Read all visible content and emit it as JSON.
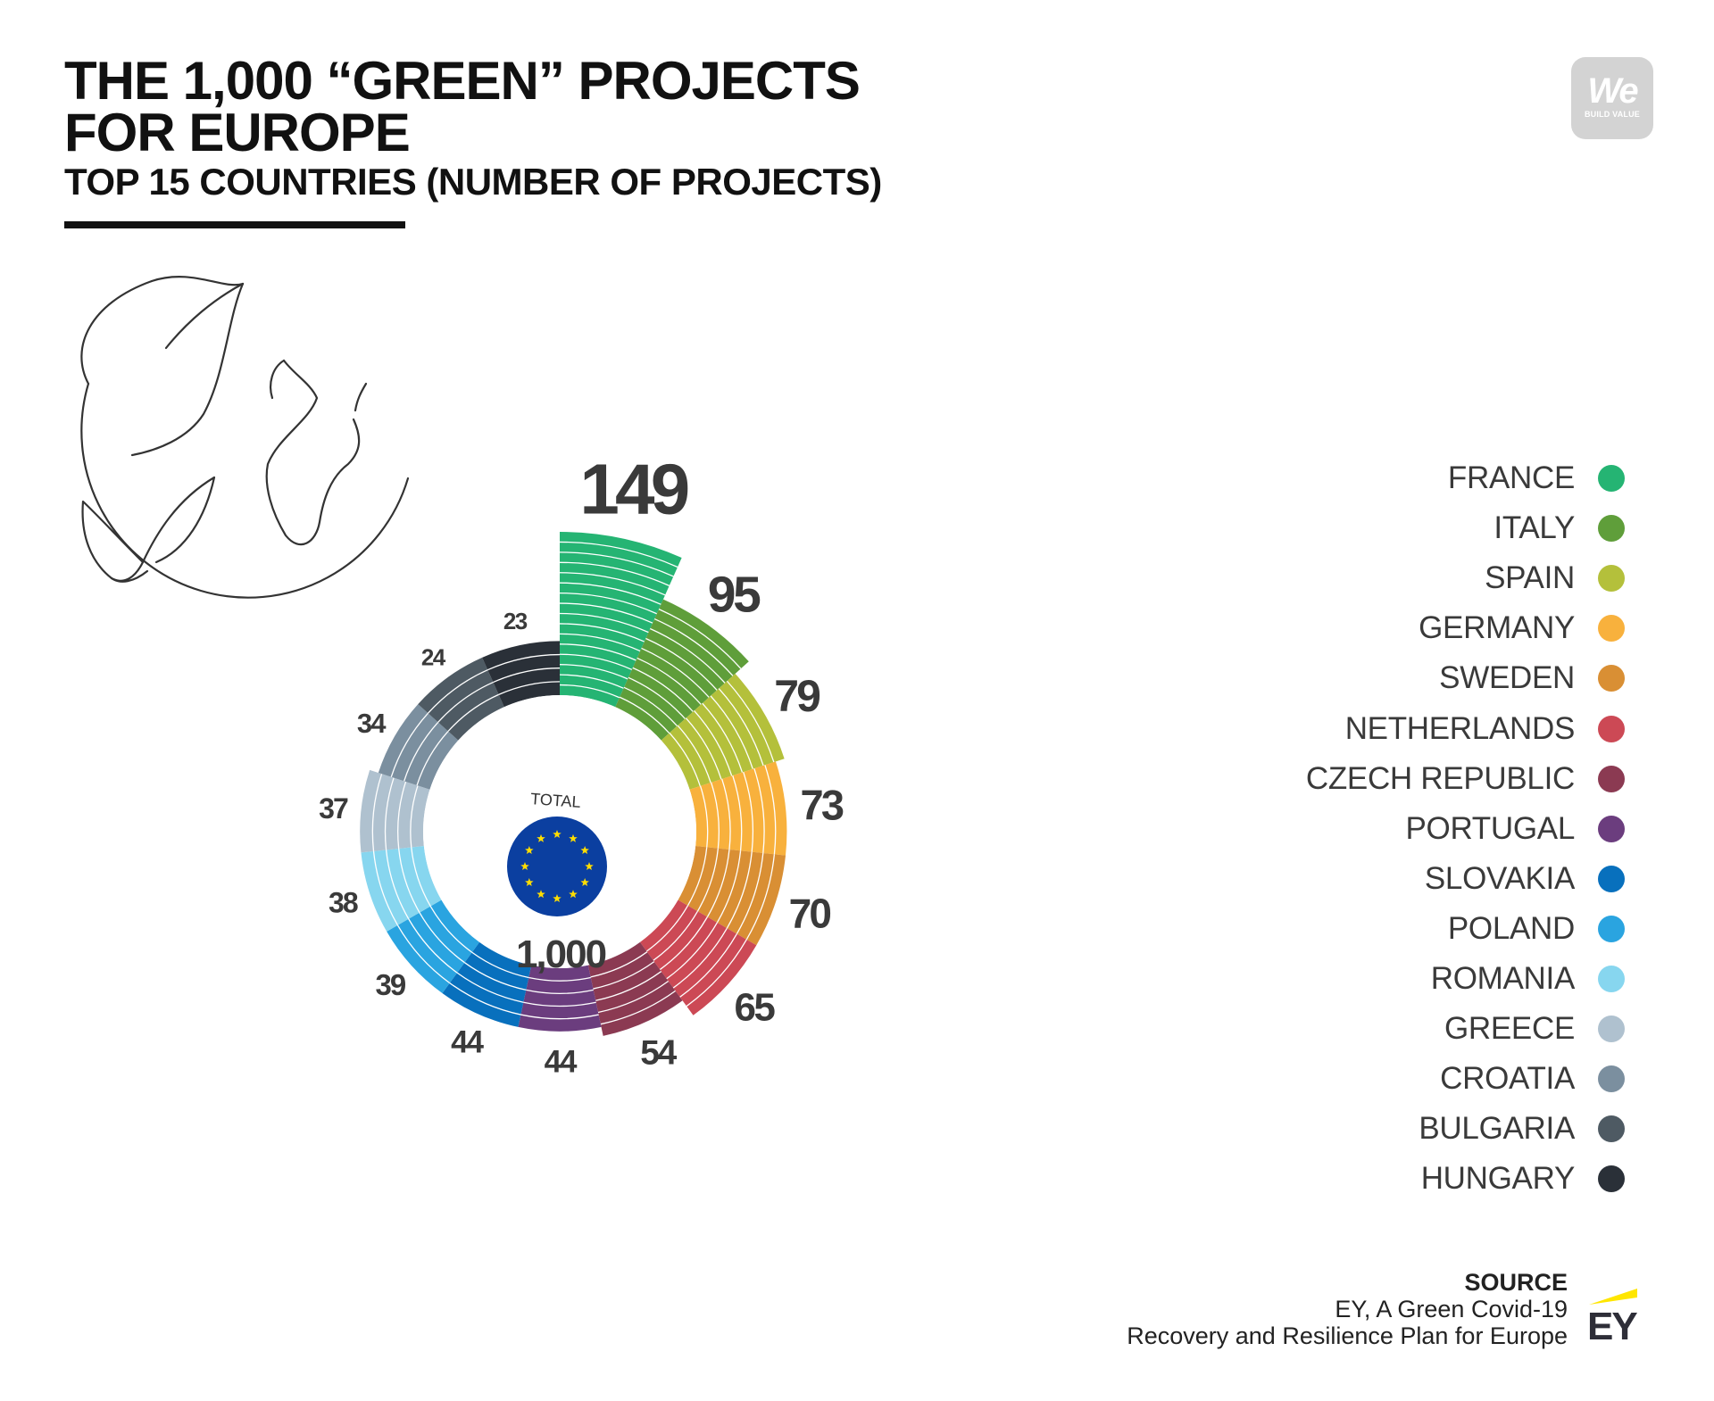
{
  "header": {
    "title_line1": "THE 1,000 “GREEN” PROJECTS",
    "title_line2": "FOR EUROPE",
    "subtitle": "TOP 15 COUNTRIES (NUMBER OF PROJECTS)"
  },
  "logo": {
    "text": "We",
    "tagline": "BUILD VALUE"
  },
  "center": {
    "label": "TOTAL",
    "value": "1,000"
  },
  "source": {
    "heading": "SOURCE",
    "line1": "EY, A Green Covid-19",
    "line2": "Recovery and Resilience Plan for Europe",
    "logo_text": "EY"
  },
  "chart_data": {
    "type": "polar-bar",
    "title": "THE 1,000 “GREEN” PROJECTS FOR EUROPE",
    "subtitle": "TOP 15 COUNTRIES (NUMBER OF PROJECTS)",
    "total": 1000,
    "categories": [
      "FRANCE",
      "ITALY",
      "SPAIN",
      "GERMANY",
      "SWEDEN",
      "NETHERLANDS",
      "CZECH REPUBLIC",
      "PORTUGAL",
      "SLOVAKIA",
      "POLAND",
      "ROMANIA",
      "GREECE",
      "CROATIA",
      "BULGARIA",
      "HUNGARY"
    ],
    "values": [
      149,
      95,
      79,
      73,
      70,
      65,
      54,
      44,
      44,
      39,
      38,
      37,
      34,
      24,
      23
    ],
    "colors": [
      "#25b473",
      "#5f9e3a",
      "#b4c03b",
      "#f8b13d",
      "#d98f34",
      "#cc4955",
      "#8b3a52",
      "#6b3d7e",
      "#0870bd",
      "#2aa4e0",
      "#87d6ef",
      "#afc1cf",
      "#7b8f9f",
      "#4e5a63",
      "#2a3038"
    ],
    "legend_position": "right"
  }
}
